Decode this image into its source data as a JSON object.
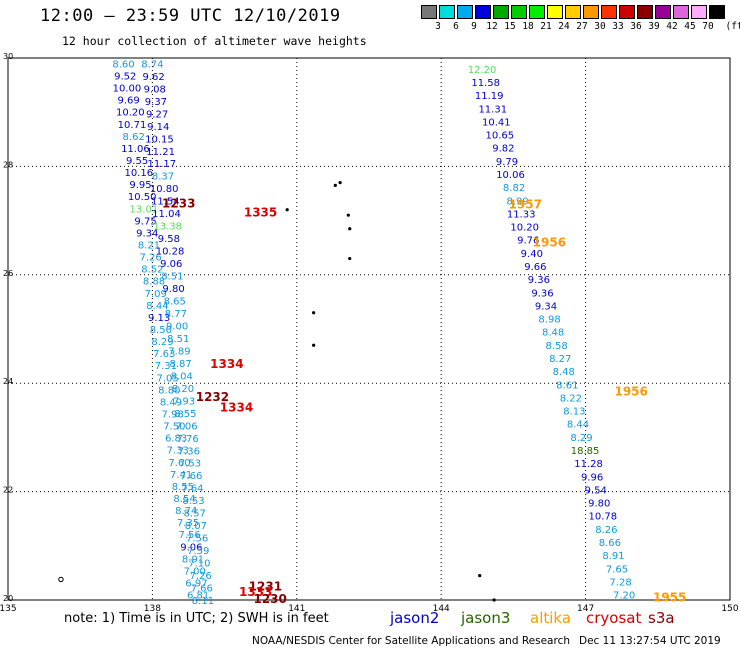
{
  "header": {
    "title": "12:00 — 23:59 UTC 12/10/2019",
    "subtitle": "12 hour collection of altimeter wave heights"
  },
  "colorbar": {
    "unit": "(ft)",
    "bins": [
      {
        "label": "3",
        "color": "#777777"
      },
      {
        "label": "6",
        "color": "#00dddd"
      },
      {
        "label": "9",
        "color": "#00aaee"
      },
      {
        "label": "12",
        "color": "#0000dd"
      },
      {
        "label": "15",
        "color": "#00aa00"
      },
      {
        "label": "18",
        "color": "#00cc00"
      },
      {
        "label": "21",
        "color": "#00ee00"
      },
      {
        "label": "24",
        "color": "#ffff00"
      },
      {
        "label": "27",
        "color": "#ffcc00"
      },
      {
        "label": "30",
        "color": "#ff9900"
      },
      {
        "label": "33",
        "color": "#ff3300"
      },
      {
        "label": "36",
        "color": "#cc0000"
      },
      {
        "label": "39",
        "color": "#880000"
      },
      {
        "label": "42",
        "color": "#990099"
      },
      {
        "label": "45",
        "color": "#dd66dd"
      },
      {
        "label": "70",
        "color": "#ffaaff"
      },
      {
        "label": "",
        "color": "#000000"
      }
    ]
  },
  "colors": {
    "dark_blue": "#0000cc",
    "light_blue": "#1199dd",
    "light_green": "#55dd55",
    "dark_green": "#226600",
    "red": "#dd0000",
    "dark_red": "#880000",
    "orange": "#ff9900"
  },
  "map": {
    "lon_ticks": [
      "135",
      "138",
      "141",
      "144",
      "147",
      "150"
    ],
    "lat_ticks": [
      "30",
      "28",
      "26",
      "24",
      "22",
      "20"
    ],
    "lon_range": [
      135,
      150
    ],
    "lat_range": [
      20,
      30
    ],
    "track1_values": [
      {
        "v": "8.60",
        "c": "light_blue"
      },
      {
        "v": "9.52",
        "c": "dark_blue"
      },
      {
        "v": "10.00",
        "c": "dark_blue"
      },
      {
        "v": "9.69",
        "c": "dark_blue"
      },
      {
        "v": "10.20",
        "c": "dark_blue"
      },
      {
        "v": "10.71",
        "c": "dark_blue"
      },
      {
        "v": "8.62",
        "c": "light_blue"
      },
      {
        "v": "11.06",
        "c": "dark_blue"
      },
      {
        "v": "9.55",
        "c": "dark_blue"
      },
      {
        "v": "10.16",
        "c": "dark_blue"
      },
      {
        "v": "9.95",
        "c": "dark_blue"
      },
      {
        "v": "10.50",
        "c": "dark_blue"
      },
      {
        "v": "13.01",
        "c": "light_green"
      },
      {
        "v": "9.75",
        "c": "dark_blue"
      },
      {
        "v": "9.34",
        "c": "dark_blue"
      },
      {
        "v": "8.21",
        "c": "light_blue"
      },
      {
        "v": "7.26",
        "c": "light_blue"
      },
      {
        "v": "8.52",
        "c": "light_blue"
      },
      {
        "v": "8.88",
        "c": "light_blue"
      },
      {
        "v": "7.09",
        "c": "light_blue"
      },
      {
        "v": "8.44",
        "c": "light_blue"
      },
      {
        "v": "9.13",
        "c": "dark_blue"
      },
      {
        "v": "8.50",
        "c": "light_blue"
      },
      {
        "v": "8.29",
        "c": "light_blue"
      },
      {
        "v": "7.63",
        "c": "light_blue"
      },
      {
        "v": "7.31",
        "c": "light_blue"
      },
      {
        "v": "7.05",
        "c": "light_blue"
      },
      {
        "v": "8.80",
        "c": "light_blue"
      },
      {
        "v": "8.49",
        "c": "light_blue"
      },
      {
        "v": "7.98",
        "c": "light_blue"
      },
      {
        "v": "7.50",
        "c": "light_blue"
      },
      {
        "v": "6.83",
        "c": "light_blue"
      },
      {
        "v": "7.33",
        "c": "light_blue"
      },
      {
        "v": "7.60",
        "c": "light_blue"
      },
      {
        "v": "7.41",
        "c": "light_blue"
      },
      {
        "v": "8.55",
        "c": "light_blue"
      },
      {
        "v": "8.54",
        "c": "light_blue"
      },
      {
        "v": "8.74",
        "c": "light_blue"
      },
      {
        "v": "7.35",
        "c": "light_blue"
      },
      {
        "v": "7.56",
        "c": "light_blue"
      },
      {
        "v": "9.06",
        "c": "dark_blue"
      },
      {
        "v": "8.91",
        "c": "light_blue"
      },
      {
        "v": "7.00",
        "c": "light_blue"
      },
      {
        "v": "6.97",
        "c": "light_blue"
      },
      {
        "v": "6.81",
        "c": "light_blue"
      }
    ],
    "track2_values": [
      {
        "v": "8.74",
        "c": "light_blue"
      },
      {
        "v": "9.62",
        "c": "dark_blue"
      },
      {
        "v": "9.08",
        "c": "dark_blue"
      },
      {
        "v": "9.37",
        "c": "dark_blue"
      },
      {
        "v": "9.27",
        "c": "dark_blue"
      },
      {
        "v": "9.14",
        "c": "dark_blue"
      },
      {
        "v": "10.15",
        "c": "dark_blue"
      },
      {
        "v": "11.21",
        "c": "dark_blue"
      },
      {
        "v": "11.17",
        "c": "dark_blue"
      },
      {
        "v": "8.37",
        "c": "light_blue"
      },
      {
        "v": "10.80",
        "c": "dark_blue"
      },
      {
        "v": "11.54",
        "c": "dark_blue"
      },
      {
        "v": "11.04",
        "c": "dark_blue"
      },
      {
        "v": "13.38",
        "c": "light_green"
      },
      {
        "v": "9.58",
        "c": "dark_blue"
      },
      {
        "v": "10.28",
        "c": "dark_blue"
      },
      {
        "v": "9.06",
        "c": "dark_blue"
      },
      {
        "v": "8.51",
        "c": "light_blue"
      },
      {
        "v": "9.80",
        "c": "dark_blue"
      },
      {
        "v": "8.65",
        "c": "light_blue"
      },
      {
        "v": "8.77",
        "c": "light_blue"
      },
      {
        "v": "9.00",
        "c": "light_blue"
      },
      {
        "v": "8.51",
        "c": "light_blue"
      },
      {
        "v": "7.89",
        "c": "light_blue"
      },
      {
        "v": "8.87",
        "c": "light_blue"
      },
      {
        "v": "8.04",
        "c": "light_blue"
      },
      {
        "v": "8.20",
        "c": "light_blue"
      },
      {
        "v": "7.93",
        "c": "light_blue"
      },
      {
        "v": "8.55",
        "c": "light_blue"
      },
      {
        "v": "7.06",
        "c": "light_blue"
      },
      {
        "v": "7.76",
        "c": "light_blue"
      },
      {
        "v": "7.36",
        "c": "light_blue"
      },
      {
        "v": "7.53",
        "c": "light_blue"
      },
      {
        "v": "7.66",
        "c": "light_blue"
      },
      {
        "v": "7.64",
        "c": "light_blue"
      },
      {
        "v": "8.53",
        "c": "light_blue"
      },
      {
        "v": "8.57",
        "c": "light_blue"
      },
      {
        "v": "8.07",
        "c": "light_blue"
      },
      {
        "v": "7.56",
        "c": "light_blue"
      },
      {
        "v": "7.59",
        "c": "light_blue"
      },
      {
        "v": "7.10",
        "c": "light_blue"
      },
      {
        "v": "7.26",
        "c": "light_blue"
      },
      {
        "v": "7.66",
        "c": "light_blue"
      },
      {
        "v": "8.11",
        "c": "light_blue"
      }
    ],
    "track3_values": [
      {
        "v": "12.20",
        "c": "light_green"
      },
      {
        "v": "11.58",
        "c": "dark_blue"
      },
      {
        "v": "11.19",
        "c": "dark_blue"
      },
      {
        "v": "11.31",
        "c": "dark_blue"
      },
      {
        "v": "10.41",
        "c": "dark_blue"
      },
      {
        "v": "10.65",
        "c": "dark_blue"
      },
      {
        "v": "9.82",
        "c": "dark_blue"
      },
      {
        "v": "9.79",
        "c": "dark_blue"
      },
      {
        "v": "10.06",
        "c": "dark_blue"
      },
      {
        "v": "8.82",
        "c": "light_blue"
      },
      {
        "v": "8.99",
        "c": "light_blue"
      },
      {
        "v": "11.33",
        "c": "dark_blue"
      },
      {
        "v": "10.20",
        "c": "dark_blue"
      },
      {
        "v": "9.76",
        "c": "dark_blue"
      },
      {
        "v": "9.40",
        "c": "dark_blue"
      },
      {
        "v": "9.66",
        "c": "dark_blue"
      },
      {
        "v": "9.36",
        "c": "dark_blue"
      },
      {
        "v": "9.36",
        "c": "dark_blue"
      },
      {
        "v": "9.34",
        "c": "dark_blue"
      },
      {
        "v": "8.98",
        "c": "light_blue"
      },
      {
        "v": "8.48",
        "c": "light_blue"
      },
      {
        "v": "8.58",
        "c": "light_blue"
      },
      {
        "v": "8.27",
        "c": "light_blue"
      },
      {
        "v": "8.48",
        "c": "light_blue"
      },
      {
        "v": "8.61",
        "c": "light_blue"
      },
      {
        "v": "8.22",
        "c": "light_blue"
      },
      {
        "v": "8.13",
        "c": "light_blue"
      },
      {
        "v": "8.44",
        "c": "light_blue"
      },
      {
        "v": "8.29",
        "c": "light_blue"
      },
      {
        "v": "18.85",
        "c": "dark_green"
      },
      {
        "v": "11.28",
        "c": "dark_blue"
      },
      {
        "v": "9.96",
        "c": "dark_blue"
      },
      {
        "v": "9.54",
        "c": "dark_blue"
      },
      {
        "v": "9.80",
        "c": "dark_blue"
      },
      {
        "v": "10.78",
        "c": "dark_blue"
      },
      {
        "v": "8.26",
        "c": "light_blue"
      },
      {
        "v": "8.66",
        "c": "light_blue"
      },
      {
        "v": "8.91",
        "c": "light_blue"
      },
      {
        "v": "7.65",
        "c": "light_blue"
      },
      {
        "v": "7.28",
        "c": "light_blue"
      },
      {
        "v": "7.20",
        "c": "light_blue"
      }
    ],
    "time_labels": [
      {
        "t": "1233",
        "c": "dark_red",
        "lon": 138.2,
        "lat": 27.32
      },
      {
        "t": "1335",
        "c": "red",
        "lon": 139.9,
        "lat": 27.15
      },
      {
        "t": "1334",
        "c": "red",
        "lon": 139.2,
        "lat": 24.35
      },
      {
        "t": "1232",
        "c": "dark_red",
        "lon": 138.9,
        "lat": 23.75
      },
      {
        "t": "1334",
        "c": "red",
        "lon": 139.4,
        "lat": 23.55
      },
      {
        "t": "1231",
        "c": "dark_red",
        "lon": 140.0,
        "lat": 20.25
      },
      {
        "t": "1333",
        "c": "red",
        "lon": 139.8,
        "lat": 20.15
      },
      {
        "t": "1230",
        "c": "dark_red",
        "lon": 140.1,
        "lat": 20.02
      },
      {
        "t": "1957",
        "c": "orange",
        "lon": 145.4,
        "lat": 27.3
      },
      {
        "t": "1956",
        "c": "orange",
        "lon": 145.9,
        "lat": 26.6
      },
      {
        "t": "1956",
        "c": "orange",
        "lon": 147.6,
        "lat": 23.85
      },
      {
        "t": "1955",
        "c": "orange",
        "lon": 148.4,
        "lat": 20.05
      }
    ]
  },
  "footer": {
    "note": "note: 1) Time is in UTC; 2) SWH is in feet",
    "missions": [
      {
        "name": "jason2",
        "c": "dark_blue"
      },
      {
        "name": "jason3",
        "c": "dark_green"
      },
      {
        "name": "altika",
        "c": "orange"
      },
      {
        "name": "cryosat",
        "c": "red"
      },
      {
        "name": "s3a",
        "c": "dark_red"
      }
    ],
    "credit": "NOAA/NESDIS Center for Satellite Applications and Research",
    "timestamp": "Dec 11 13:27:54 UTC 2019"
  }
}
